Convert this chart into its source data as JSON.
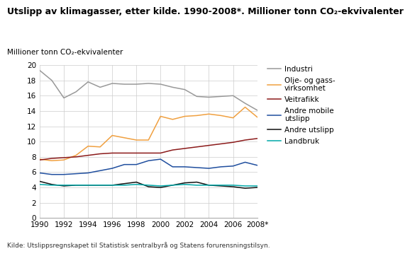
{
  "title": "Utslipp av klimagasser, etter kilde. 1990-2008*. Millioner tonn CO₂-ekvivalenter",
  "ylabel": "Millioner tonn CO₂-ekvivalenter",
  "source_note": "Kilde: Utslippsregnskapet til Statistisk sentralbyrå og Statens forurensningstilsyn.",
  "years": [
    1990,
    1991,
    1992,
    1993,
    1994,
    1995,
    1996,
    1997,
    1998,
    1999,
    2000,
    2001,
    2002,
    2003,
    2004,
    2005,
    2006,
    2007,
    2008
  ],
  "xtick_positions": [
    1990,
    1992,
    1994,
    1996,
    1998,
    2000,
    2002,
    2004,
    2006,
    2008
  ],
  "xtick_labels": [
    "1990",
    "1992",
    "1994",
    "1996",
    "1998",
    "2000",
    "2002",
    "2004",
    "2006",
    "2008*"
  ],
  "series_order": [
    "Industri",
    "Olje- og gass-\nvirksomhet",
    "Veitrafikk",
    "Andre mobile\nutslipp",
    "Andre utslipp",
    "Landbruk"
  ],
  "series": {
    "Industri": {
      "color": "#999999",
      "values": [
        19.3,
        18.0,
        15.7,
        16.5,
        17.8,
        17.1,
        17.6,
        17.5,
        17.5,
        17.6,
        17.5,
        17.1,
        16.8,
        15.9,
        15.8,
        15.9,
        16.0,
        15.0,
        14.1
      ]
    },
    "Olje- og gass-\nvirksomhet": {
      "color": "#f0a040",
      "values": [
        7.7,
        7.5,
        7.6,
        8.2,
        9.4,
        9.3,
        10.8,
        10.5,
        10.2,
        10.2,
        13.3,
        12.9,
        13.3,
        13.4,
        13.6,
        13.4,
        13.1,
        14.5,
        13.2
      ]
    },
    "Veitrafikk": {
      "color": "#8b1a1a",
      "values": [
        7.6,
        7.8,
        7.9,
        8.0,
        8.2,
        8.4,
        8.5,
        8.5,
        8.5,
        8.5,
        8.5,
        8.9,
        9.1,
        9.3,
        9.5,
        9.7,
        9.9,
        10.2,
        10.4
      ]
    },
    "Andre mobile\nutslipp": {
      "color": "#1f4e9e",
      "values": [
        5.9,
        5.7,
        5.7,
        5.8,
        5.9,
        6.2,
        6.5,
        7.0,
        7.0,
        7.5,
        7.7,
        6.7,
        6.7,
        6.6,
        6.5,
        6.7,
        6.8,
        7.3,
        6.9
      ]
    },
    "Andre utslipp": {
      "color": "#111111",
      "values": [
        4.8,
        4.4,
        4.2,
        4.3,
        4.3,
        4.3,
        4.3,
        4.5,
        4.7,
        4.1,
        4.0,
        4.3,
        4.6,
        4.7,
        4.3,
        4.2,
        4.1,
        3.9,
        4.0
      ]
    },
    "Landbruk": {
      "color": "#00a8a8",
      "values": [
        4.4,
        4.3,
        4.3,
        4.3,
        4.3,
        4.3,
        4.3,
        4.3,
        4.4,
        4.3,
        4.2,
        4.3,
        4.4,
        4.3,
        4.3,
        4.3,
        4.3,
        4.2,
        4.2
      ]
    }
  },
  "ylim": [
    0,
    20
  ],
  "yticks": [
    0,
    2,
    4,
    6,
    8,
    10,
    12,
    14,
    16,
    18,
    20
  ],
  "xlim": [
    1990,
    2008
  ],
  "background_color": "#ffffff",
  "grid_color": "#cccccc",
  "title_fontsize": 9,
  "ylabel_fontsize": 7.5,
  "tick_fontsize": 7.5,
  "legend_fontsize": 7.5,
  "source_fontsize": 6.5
}
